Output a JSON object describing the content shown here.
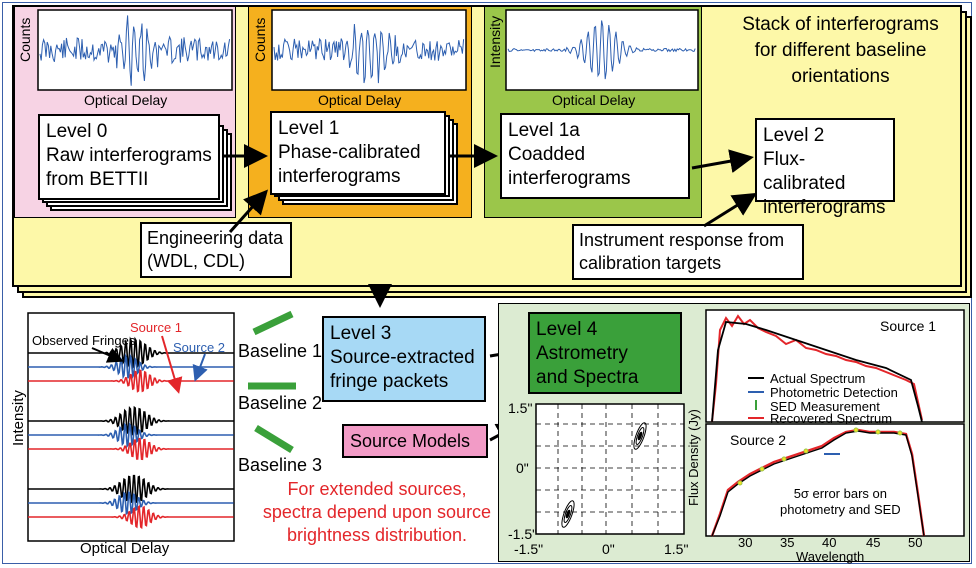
{
  "top_title": [
    "Stack of interferograms",
    "for different baseline",
    "orientations"
  ],
  "levels": {
    "l0": [
      "Level 0",
      "Raw interferograms",
      "from BETTII"
    ],
    "l1": [
      "Level 1",
      "Phase-calibrated",
      "interferograms"
    ],
    "l1a": [
      "Level 1a",
      "Coadded",
      "interferograms"
    ],
    "l2": [
      "Level 2",
      "Flux-calibrated",
      "interferograms"
    ],
    "l3": [
      "Level 3",
      "Source-extracted",
      "fringe packets"
    ],
    "l4": [
      "Level 4",
      "Astrometry",
      "and Spectra"
    ]
  },
  "plot_labels": {
    "counts": "Counts",
    "intensity": "Intensity",
    "optical_delay": "Optical Delay"
  },
  "engineering": [
    "Engineering data",
    "(WDL, CDL)"
  ],
  "instrument": [
    "Instrument response from",
    "calibration targets"
  ],
  "source_models": "Source Models",
  "fringes": {
    "observed": "Observed Fringes",
    "source1": "Source 1",
    "source2": "Source 2",
    "ylabel": "Intensity",
    "xlabel": "Optical Delay",
    "baselines": [
      "Baseline 1",
      "Baseline 2",
      "Baseline 3"
    ]
  },
  "extended_note": [
    "For extended sources,",
    "spectra depend upon source",
    "brightness distribution."
  ],
  "astrometry": {
    "yticks": [
      "1.5\"",
      "0\"",
      "-1.5\""
    ],
    "xticks": [
      "-1.5\"",
      "0\"",
      "1.5\""
    ]
  },
  "spectra": {
    "source1": "Source 1",
    "source2": "Source 2",
    "ylabel": "Flux Density (Jy)",
    "xlabel": "Wavelength",
    "xticks": [
      "30",
      "35",
      "40",
      "45",
      "50"
    ],
    "legend": [
      "Actual Spectrum",
      "Photometric Detection",
      "SED Measurement",
      "Recovered Spectrum"
    ],
    "note": [
      "5σ error bars on",
      "photometry and SED"
    ]
  },
  "colors": {
    "pink": "#f7d3e4",
    "orange": "#f5b01e",
    "green": "#9bc64a",
    "yellow": "#fdf8a8",
    "lightgreen": "#dcebd2",
    "blue": "#a7d9f5",
    "darkgreen": "#3aa03a",
    "magenta": "#f29bc6",
    "red": "#e3262a",
    "trace_blue": "#2d5fb0"
  }
}
